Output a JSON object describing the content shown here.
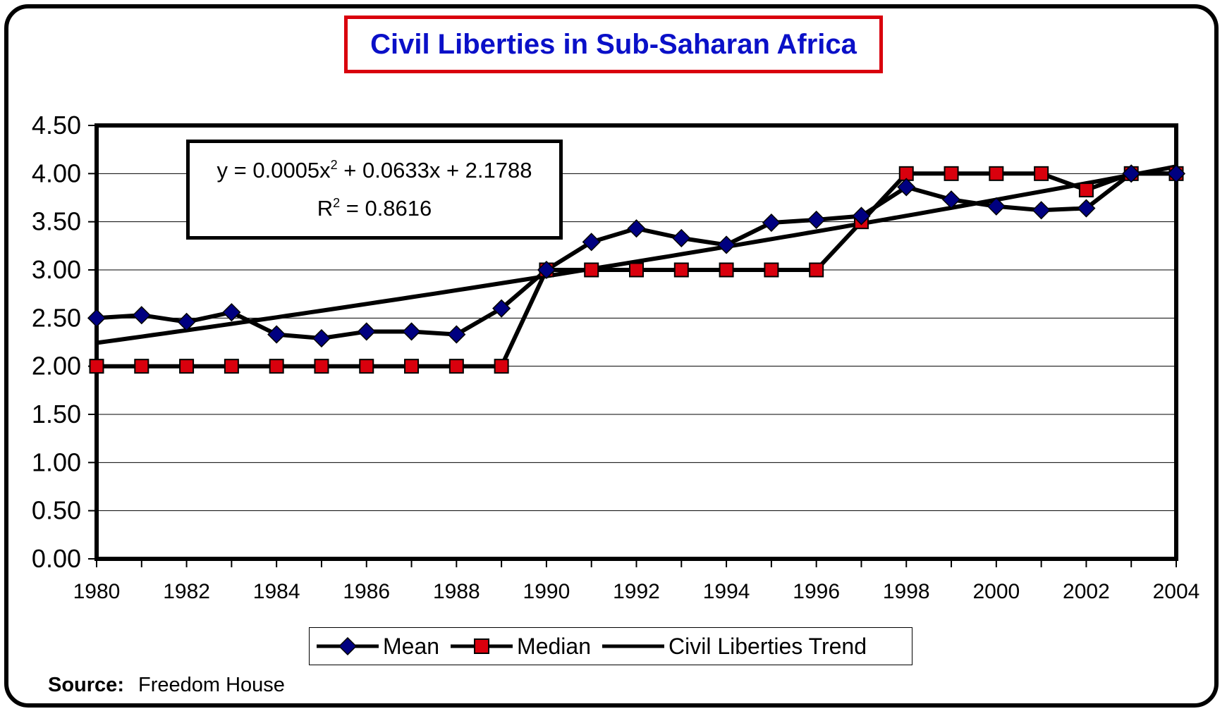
{
  "title": "Civil Liberties in Sub-Saharan Africa",
  "equation": {
    "line1_prefix": "y = 0.0005x",
    "line1_sup": "2",
    "line1_suffix": " + 0.0633x + 2.1788",
    "line2_prefix": "R",
    "line2_sup": "2",
    "line2_suffix": " = 0.8616"
  },
  "legend": {
    "mean": "Mean",
    "median": "Median",
    "trend": "Civil Liberties Trend"
  },
  "source": {
    "label": "Source:",
    "text": "Freedom House"
  },
  "colors": {
    "title": "#0a10c8",
    "title_border": "#d9000d",
    "mean_marker": "#000080",
    "median_marker": "#d9000d",
    "line": "#000000"
  },
  "chart_data": {
    "type": "line",
    "title": "Civil Liberties in Sub-Saharan Africa",
    "x": [
      1980,
      1981,
      1982,
      1983,
      1984,
      1985,
      1986,
      1987,
      1988,
      1989,
      1990,
      1991,
      1992,
      1993,
      1994,
      1995,
      1996,
      1997,
      1998,
      1999,
      2000,
      2001,
      2002,
      2003,
      2004
    ],
    "xticks": [
      "1980",
      "1982",
      "1984",
      "1986",
      "1988",
      "1990",
      "1992",
      "1994",
      "1996",
      "1998",
      "2000",
      "2002",
      "2004"
    ],
    "yticks": [
      "0.00",
      "0.50",
      "1.00",
      "1.50",
      "2.00",
      "2.50",
      "3.00",
      "3.50",
      "4.00",
      "4.50"
    ],
    "ylim": [
      0,
      4.5
    ],
    "grid": true,
    "legend_position": "bottom",
    "series": [
      {
        "name": "Mean",
        "marker": "diamond",
        "values": [
          2.5,
          2.53,
          2.46,
          2.56,
          2.33,
          2.29,
          2.36,
          2.36,
          2.33,
          2.6,
          3.0,
          3.29,
          3.43,
          3.33,
          3.26,
          3.49,
          3.52,
          3.56,
          3.86,
          3.73,
          3.66,
          3.62,
          3.64,
          4.0,
          4.0
        ]
      },
      {
        "name": "Median",
        "marker": "square",
        "values": [
          2.0,
          2.0,
          2.0,
          2.0,
          2.0,
          2.0,
          2.0,
          2.0,
          2.0,
          2.0,
          3.0,
          3.0,
          3.0,
          3.0,
          3.0,
          3.0,
          3.0,
          3.5,
          4.0,
          4.0,
          4.0,
          4.0,
          3.83,
          4.0,
          4.0
        ]
      },
      {
        "name": "Civil Liberties Trend",
        "marker": "none",
        "trend": {
          "a": 0.0005,
          "b": 0.0633,
          "c": 2.1788,
          "r2": 0.8616
        }
      }
    ]
  }
}
